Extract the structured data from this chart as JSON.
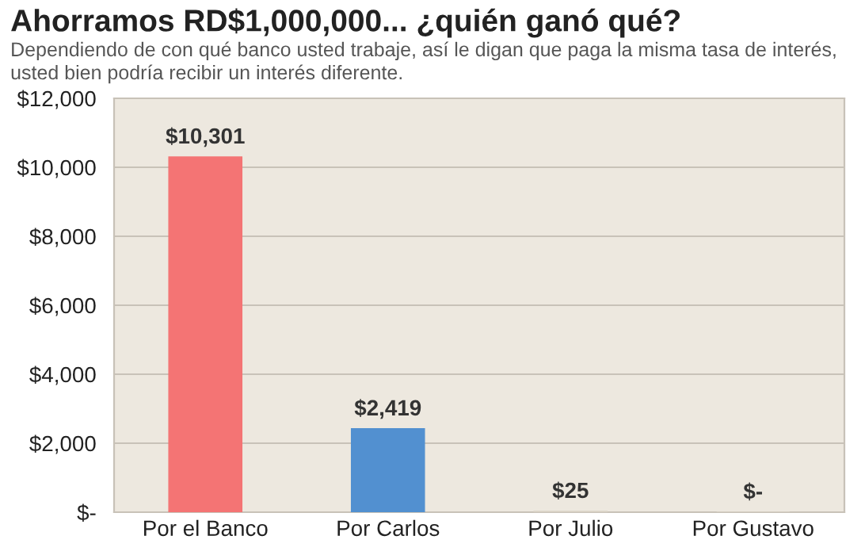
{
  "chart_data": {
    "type": "bar",
    "title": "Ahorramos RD$1,000,000... ¿quién ganó qué?",
    "subtitle": "Dependiendo de con qué banco usted trabaje, así le digan que paga la misma tasa de interés, usted bien podría recibir un interés diferente.",
    "categories": [
      "Por el Banco",
      "Por Carlos",
      "Por Julio",
      "Por Gustavo"
    ],
    "values": [
      10301,
      2419,
      25,
      0
    ],
    "colors": [
      "#f47474",
      "#5290d0",
      "#d9d2c5",
      "#d9d2c5"
    ],
    "value_labels": [
      "$10,301",
      "$2,419",
      "$25",
      "$-"
    ],
    "ylim": [
      0,
      12000
    ],
    "yticks": [
      {
        "value": 0,
        "label": "$-"
      },
      {
        "value": 2000,
        "label": "$2,000"
      },
      {
        "value": 4000,
        "label": "$4,000"
      },
      {
        "value": 6000,
        "label": "$6,000"
      },
      {
        "value": 8000,
        "label": "$8,000"
      },
      {
        "value": 10000,
        "label": "$10,000"
      },
      {
        "value": 12000,
        "label": "$12,000"
      }
    ],
    "grid": "y",
    "legend": false
  }
}
